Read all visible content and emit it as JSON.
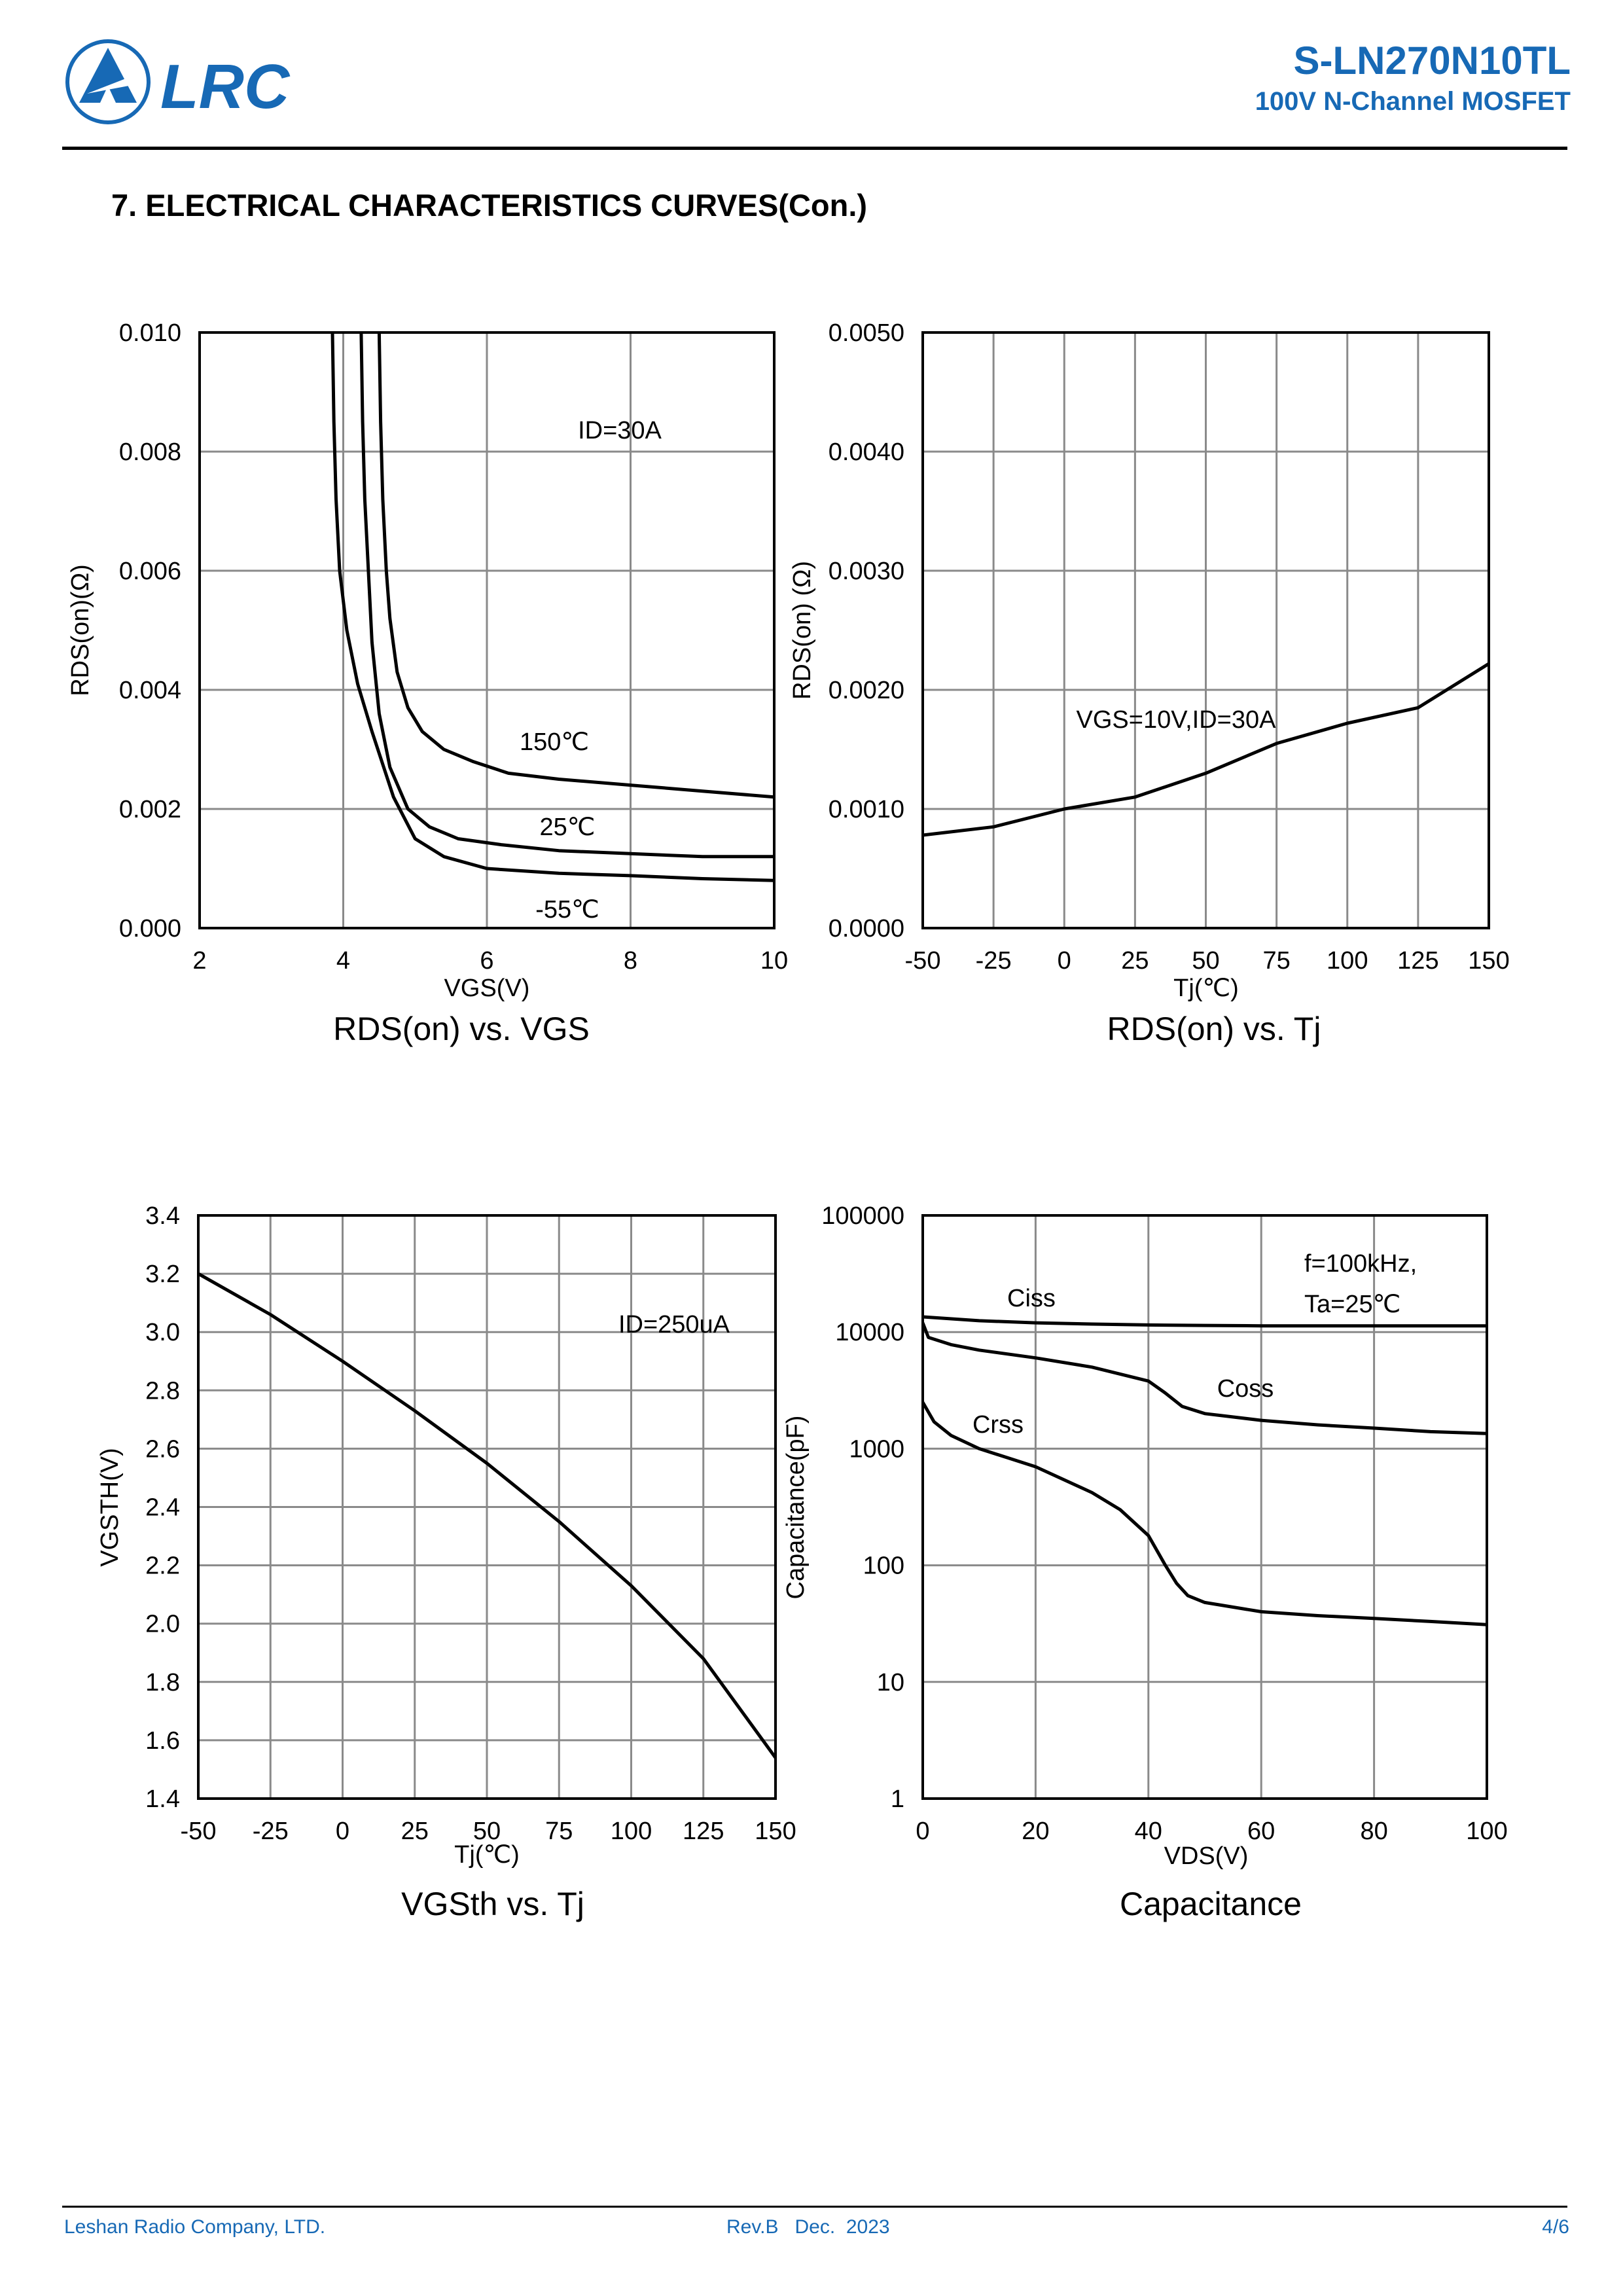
{
  "header": {
    "logo_text": "LRC",
    "part_number": "S-LN270N10TL",
    "part_description": "100V N-Channel MOSFET",
    "brand_color": "#1769b5"
  },
  "section_title": "7. ELECTRICAL CHARACTERISTICS CURVES(Con.)",
  "chart_data": [
    {
      "type": "line",
      "caption": "RDS(on) vs. VGS",
      "xlabel": "VGS(V)",
      "ylabel": "RDS(on)(Ω)",
      "xlim": [
        2,
        10
      ],
      "ylim": [
        0,
        0.01
      ],
      "xticks": [
        "2",
        "4",
        "6",
        "8",
        "10"
      ],
      "yticks": [
        "0.000",
        "0.002",
        "0.004",
        "0.006",
        "0.008",
        "0.010"
      ],
      "annotation": "ID=30A",
      "series": [
        {
          "name": "150℃",
          "x": [
            4.5,
            4.52,
            4.55,
            4.6,
            4.65,
            4.75,
            4.9,
            5.1,
            5.4,
            5.8,
            6.3,
            7,
            8,
            9,
            10
          ],
          "y": [
            0.01,
            0.0085,
            0.0072,
            0.006,
            0.0052,
            0.0043,
            0.0037,
            0.0033,
            0.003,
            0.0028,
            0.0026,
            0.0025,
            0.0024,
            0.0023,
            0.0022
          ]
        },
        {
          "name": "25℃",
          "x": [
            4.25,
            4.27,
            4.3,
            4.35,
            4.4,
            4.5,
            4.65,
            4.9,
            5.2,
            5.6,
            6.2,
            7,
            8,
            9,
            10
          ],
          "y": [
            0.01,
            0.0085,
            0.0072,
            0.006,
            0.0048,
            0.0036,
            0.0027,
            0.002,
            0.0017,
            0.0015,
            0.0014,
            0.0013,
            0.00125,
            0.0012,
            0.0012
          ]
        },
        {
          "name": "-55℃",
          "x": [
            3.85,
            3.87,
            3.9,
            3.95,
            4.05,
            4.2,
            4.4,
            4.7,
            5,
            5.4,
            6,
            7,
            8,
            9,
            10
          ],
          "y": [
            0.01,
            0.0085,
            0.0072,
            0.006,
            0.005,
            0.0041,
            0.0033,
            0.0022,
            0.0015,
            0.0012,
            0.001,
            0.00092,
            0.00088,
            0.00083,
            0.0008
          ]
        }
      ]
    },
    {
      "type": "line",
      "caption": "RDS(on) vs. Tj",
      "xlabel": "Tj(℃)",
      "ylabel": "RDS(on) (Ω)",
      "xlim": [
        -50,
        150
      ],
      "ylim": [
        0,
        0.005
      ],
      "xticks": [
        "-50",
        "-25",
        "0",
        "25",
        "50",
        "75",
        "100",
        "125",
        "150"
      ],
      "yticks": [
        "0.0000",
        "0.0010",
        "0.0020",
        "0.0030",
        "0.0040",
        "0.0050"
      ],
      "annotation": "VGS=10V,ID=30A",
      "series": [
        {
          "name": "RDS(on)",
          "x": [
            -50,
            -25,
            0,
            25,
            50,
            75,
            100,
            125,
            150
          ],
          "y": [
            0.00078,
            0.00085,
            0.001,
            0.0011,
            0.0013,
            0.00155,
            0.00172,
            0.00185,
            0.00222
          ]
        }
      ]
    },
    {
      "type": "line",
      "caption": "VGSth vs. Tj",
      "xlabel": "Tj(℃)",
      "ylabel": "VGSTH(V)",
      "xlim": [
        -50,
        150
      ],
      "ylim": [
        1.4,
        3.4
      ],
      "xticks": [
        "-50",
        "-25",
        "0",
        "25",
        "50",
        "75",
        "100",
        "125",
        "150"
      ],
      "yticks": [
        "1.4",
        "1.6",
        "1.8",
        "2.0",
        "2.2",
        "2.4",
        "2.6",
        "2.8",
        "3.0",
        "3.2",
        "3.4"
      ],
      "annotation": "ID=250uA",
      "series": [
        {
          "name": "VGSth",
          "x": [
            -50,
            -25,
            0,
            25,
            50,
            75,
            100,
            125,
            150
          ],
          "y": [
            3.2,
            3.06,
            2.9,
            2.73,
            2.55,
            2.35,
            2.13,
            1.88,
            1.54
          ]
        }
      ]
    },
    {
      "type": "line",
      "caption": "Capacitance",
      "xlabel": "VDS(V)",
      "ylabel": "Capacitance(pF)",
      "xlim": [
        0,
        100
      ],
      "ylim": [
        1,
        100000
      ],
      "yscale": "log",
      "xticks": [
        "0",
        "20",
        "40",
        "60",
        "80",
        "100"
      ],
      "yticks": [
        "1",
        "10",
        "100",
        "1000",
        "10000",
        "100000"
      ],
      "annotation_lines": [
        "f=100kHz,",
        "Ta=25℃"
      ],
      "series": [
        {
          "name": "Ciss",
          "x": [
            0,
            10,
            20,
            30,
            40,
            50,
            60,
            70,
            80,
            90,
            100
          ],
          "y": [
            13500,
            12500,
            12000,
            11700,
            11500,
            11400,
            11300,
            11300,
            11300,
            11300,
            11300
          ]
        },
        {
          "name": "Coss",
          "x": [
            0,
            1,
            5,
            10,
            20,
            30,
            40,
            43,
            46,
            50,
            60,
            70,
            80,
            90,
            100
          ],
          "y": [
            12000,
            9000,
            7800,
            7000,
            6000,
            5000,
            3800,
            3000,
            2300,
            2000,
            1750,
            1600,
            1500,
            1400,
            1350
          ]
        },
        {
          "name": "Crss",
          "x": [
            0,
            2,
            5,
            10,
            20,
            30,
            35,
            40,
            43,
            45,
            47,
            50,
            60,
            70,
            80,
            90,
            100
          ],
          "y": [
            2500,
            1700,
            1300,
            1000,
            700,
            420,
            300,
            180,
            100,
            70,
            55,
            48,
            40,
            37,
            35,
            33,
            31
          ]
        }
      ]
    }
  ],
  "footer": {
    "company": "Leshan Radio Company, LTD.",
    "revision": "Rev.B   Dec.  2023",
    "page": "4/6"
  }
}
